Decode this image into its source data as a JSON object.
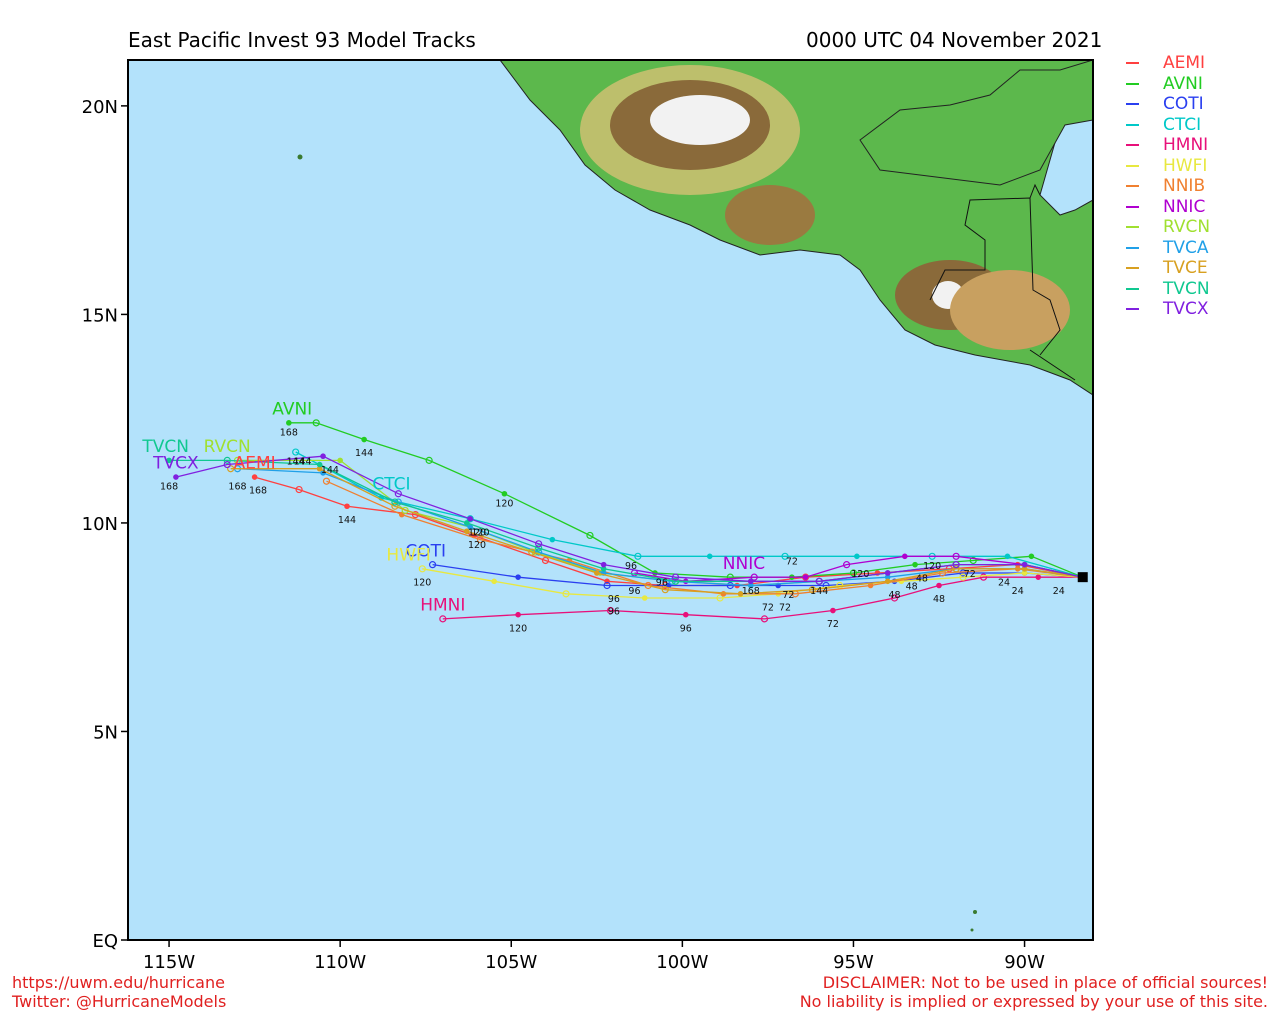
{
  "header": {
    "title": "East Pacific Invest 93 Model Tracks",
    "timestamp": "0000 UTC 04 November 2021"
  },
  "axes": {
    "lon_ticks": [
      {
        "lon": -115,
        "label": "115W"
      },
      {
        "lon": -110,
        "label": "110W"
      },
      {
        "lon": -105,
        "label": "105W"
      },
      {
        "lon": -100,
        "label": "100W"
      },
      {
        "lon": -95,
        "label": "95W"
      },
      {
        "lon": -90,
        "label": "90W"
      }
    ],
    "lat_ticks": [
      {
        "lat": 0,
        "label": "EQ"
      },
      {
        "lat": 5,
        "label": "5N"
      },
      {
        "lat": 10,
        "label": "10N"
      },
      {
        "lat": 15,
        "label": "15N"
      },
      {
        "lat": 20,
        "label": "20N"
      }
    ],
    "lon_range": [
      -116.2,
      -88.0
    ],
    "lat_range": [
      0,
      21.1
    ]
  },
  "chart_data": {
    "type": "scatter",
    "current_position": {
      "lon": -88.3,
      "lat": 8.7
    },
    "series": [
      {
        "name": "AEMI",
        "color": "#ff4040",
        "points": [
          [
            -88.3,
            8.7
          ],
          [
            -90.2,
            9.0
          ],
          [
            -92.2,
            8.9
          ],
          [
            -94.3,
            8.8
          ],
          [
            -96.4,
            8.7
          ],
          [
            -98.4,
            8.5
          ],
          [
            -100.5,
            8.5
          ],
          [
            -102.2,
            8.6
          ],
          [
            -104.0,
            9.1
          ],
          [
            -106.1,
            9.7
          ],
          [
            -107.8,
            10.2
          ],
          [
            -109.8,
            10.4
          ],
          [
            -111.2,
            10.8
          ],
          [
            -112.5,
            11.1
          ]
        ],
        "label_at": [
          -112.5,
          11.3
        ],
        "hour_labels": [
          {
            "text": "144",
            "lon": -109.8,
            "lat": 10.0
          },
          {
            "text": "168",
            "lon": -112.4,
            "lat": 10.7
          }
        ]
      },
      {
        "name": "AVNI",
        "color": "#22cc22",
        "points": [
          [
            -88.3,
            8.7
          ],
          [
            -89.8,
            9.2
          ],
          [
            -91.5,
            9.1
          ],
          [
            -93.2,
            9.0
          ],
          [
            -95.0,
            8.8
          ],
          [
            -96.8,
            8.7
          ],
          [
            -98.6,
            8.7
          ],
          [
            -100.8,
            8.8
          ],
          [
            -102.7,
            9.7
          ],
          [
            -105.2,
            10.7
          ],
          [
            -107.4,
            11.5
          ],
          [
            -109.3,
            12.0
          ],
          [
            -110.7,
            12.4
          ],
          [
            -111.5,
            12.4
          ]
        ],
        "label_at": [
          -111.4,
          12.6
        ],
        "hour_labels": [
          {
            "text": "120",
            "lon": -105.2,
            "lat": 10.4
          },
          {
            "text": "144",
            "lon": -109.3,
            "lat": 11.6
          },
          {
            "text": "168",
            "lon": -111.5,
            "lat": 12.1
          }
        ]
      },
      {
        "name": "COTI",
        "color": "#2a3ff0",
        "points": [
          [
            -88.3,
            8.7
          ],
          [
            -90.0,
            8.8
          ],
          [
            -91.8,
            8.8
          ],
          [
            -93.8,
            8.6
          ],
          [
            -95.8,
            8.5
          ],
          [
            -97.2,
            8.5
          ],
          [
            -98.6,
            8.5
          ],
          [
            -100.4,
            8.5
          ],
          [
            -102.2,
            8.5
          ],
          [
            -104.8,
            8.7
          ],
          [
            -107.3,
            9.0
          ]
        ],
        "label_at": [
          -107.5,
          9.2
        ],
        "hour_labels": [
          {
            "text": "96",
            "lon": -102.0,
            "lat": 8.1
          }
        ]
      },
      {
        "name": "CTCI",
        "color": "#00c8c8",
        "points": [
          [
            -88.3,
            8.7
          ],
          [
            -90.5,
            9.2
          ],
          [
            -92.7,
            9.2
          ],
          [
            -94.9,
            9.2
          ],
          [
            -97.0,
            9.2
          ],
          [
            -99.2,
            9.2
          ],
          [
            -101.3,
            9.2
          ],
          [
            -103.8,
            9.6
          ],
          [
            -106.2,
            10.1
          ],
          [
            -108.8,
            10.6
          ],
          [
            -111.3,
            11.7
          ]
        ],
        "label_at": [
          -108.5,
          10.8
        ],
        "hour_labels": [
          {
            "text": "120",
            "lon": -106.0,
            "lat": 9.7
          }
        ]
      },
      {
        "name": "HMNI",
        "color": "#e8107a",
        "points": [
          [
            -88.3,
            8.7
          ],
          [
            -89.6,
            8.7
          ],
          [
            -91.2,
            8.7
          ],
          [
            -92.5,
            8.5
          ],
          [
            -93.8,
            8.2
          ],
          [
            -95.6,
            7.9
          ],
          [
            -97.6,
            7.7
          ],
          [
            -99.9,
            7.8
          ],
          [
            -102.1,
            7.9
          ],
          [
            -104.8,
            7.8
          ],
          [
            -107.0,
            7.7
          ]
        ],
        "label_at": [
          -107.0,
          7.9
        ],
        "hour_labels": [
          {
            "text": "48",
            "lon": -92.5,
            "lat": 8.1
          },
          {
            "text": "72",
            "lon": -95.6,
            "lat": 7.5
          },
          {
            "text": "96",
            "lon": -99.9,
            "lat": 7.4
          },
          {
            "text": "120",
            "lon": -104.8,
            "lat": 7.4
          }
        ]
      },
      {
        "name": "HWFI",
        "color": "#e8e840",
        "points": [
          [
            -88.3,
            8.7
          ],
          [
            -90.0,
            8.8
          ],
          [
            -91.8,
            8.7
          ],
          [
            -93.6,
            8.6
          ],
          [
            -95.4,
            8.5
          ],
          [
            -97.2,
            8.3
          ],
          [
            -98.9,
            8.2
          ],
          [
            -101.1,
            8.2
          ],
          [
            -103.4,
            8.3
          ],
          [
            -105.5,
            8.6
          ],
          [
            -107.6,
            8.9
          ]
        ],
        "label_at": [
          -108.0,
          9.1
        ],
        "hour_labels": [
          {
            "text": "96",
            "lon": -102.0,
            "lat": 7.8
          },
          {
            "text": "120",
            "lon": -107.6,
            "lat": 8.5
          }
        ]
      },
      {
        "name": "NNIB",
        "color": "#f08030",
        "points": [
          [
            -88.3,
            8.7
          ],
          [
            -90.2,
            8.9
          ],
          [
            -92.4,
            8.8
          ],
          [
            -94.5,
            8.5
          ],
          [
            -96.7,
            8.3
          ],
          [
            -98.8,
            8.3
          ],
          [
            -101.0,
            8.5
          ],
          [
            -103.3,
            9.1
          ],
          [
            -105.9,
            9.6
          ],
          [
            -108.2,
            10.2
          ],
          [
            -110.4,
            11.0
          ]
        ],
        "label_at": null,
        "hour_labels": [
          {
            "text": "72",
            "lon": -97.0,
            "lat": 7.9
          },
          {
            "text": "120",
            "lon": -106.0,
            "lat": 9.4
          }
        ]
      },
      {
        "name": "NNIC",
        "color": "#b000d0",
        "points": [
          [
            -88.3,
            8.7
          ],
          [
            -90.0,
            9.0
          ],
          [
            -92.0,
            9.2
          ],
          [
            -93.5,
            9.2
          ],
          [
            -95.2,
            9.0
          ],
          [
            -96.4,
            8.7
          ],
          [
            -97.9,
            8.7
          ],
          [
            -99.9,
            8.6
          ],
          [
            -101.4,
            8.8
          ]
        ],
        "label_at": [
          -98.2,
          8.9
        ],
        "hour_labels": [
          {
            "text": "72",
            "lon": -96.8,
            "lat": 9.0
          },
          {
            "text": "168",
            "lon": -98.0,
            "lat": 8.3
          }
        ]
      },
      {
        "name": "RVCN",
        "color": "#a0e030",
        "points": [
          [
            -88.3,
            8.7
          ],
          [
            -90.0,
            9.0
          ],
          [
            -92.0,
            9.0
          ],
          [
            -94.0,
            8.8
          ],
          [
            -96.0,
            8.6
          ],
          [
            -98.0,
            8.5
          ],
          [
            -100.2,
            8.6
          ],
          [
            -102.4,
            8.8
          ],
          [
            -104.3,
            9.3
          ],
          [
            -106.2,
            9.9
          ],
          [
            -108.1,
            10.3
          ],
          [
            -110.0,
            11.5
          ],
          [
            -113.0,
            11.5
          ]
        ],
        "label_at": [
          -113.3,
          11.7
        ],
        "hour_labels": [
          {
            "text": "144",
            "lon": -110.3,
            "lat": 11.2
          }
        ]
      },
      {
        "name": "TVCA",
        "color": "#20a0e8",
        "points": [
          [
            -88.3,
            8.7
          ],
          [
            -90.0,
            8.9
          ],
          [
            -92.0,
            8.9
          ],
          [
            -94.0,
            8.7
          ],
          [
            -96.0,
            8.6
          ],
          [
            -98.0,
            8.5
          ],
          [
            -100.3,
            8.6
          ],
          [
            -102.3,
            8.8
          ],
          [
            -104.2,
            9.3
          ],
          [
            -106.2,
            9.9
          ],
          [
            -108.3,
            10.5
          ],
          [
            -110.5,
            11.2
          ],
          [
            -113.0,
            11.3
          ]
        ],
        "label_at": null,
        "hour_labels": []
      },
      {
        "name": "TVCE",
        "color": "#d8a020",
        "points": [
          [
            -88.3,
            8.7
          ],
          [
            -90.0,
            8.9
          ],
          [
            -92.0,
            8.9
          ],
          [
            -94.0,
            8.6
          ],
          [
            -96.2,
            8.4
          ],
          [
            -98.3,
            8.3
          ],
          [
            -100.5,
            8.4
          ],
          [
            -102.5,
            8.8
          ],
          [
            -104.4,
            9.3
          ],
          [
            -106.3,
            9.8
          ],
          [
            -108.4,
            10.4
          ],
          [
            -110.6,
            11.3
          ],
          [
            -113.2,
            11.3
          ]
        ],
        "label_at": null,
        "hour_labels": []
      },
      {
        "name": "TVCN",
        "color": "#10c890",
        "points": [
          [
            -88.3,
            8.7
          ],
          [
            -90.0,
            9.0
          ],
          [
            -92.0,
            9.0
          ],
          [
            -94.0,
            8.8
          ],
          [
            -96.0,
            8.6
          ],
          [
            -98.0,
            8.6
          ],
          [
            -100.2,
            8.6
          ],
          [
            -102.3,
            8.9
          ],
          [
            -104.2,
            9.4
          ],
          [
            -106.3,
            10.0
          ],
          [
            -108.4,
            10.5
          ],
          [
            -110.6,
            11.4
          ],
          [
            -113.3,
            11.5
          ],
          [
            -115.0,
            11.5
          ]
        ],
        "label_at": [
          -115.1,
          11.7
        ],
        "hour_labels": [
          {
            "text": "144",
            "lon": -111.1,
            "lat": 11.4
          }
        ]
      },
      {
        "name": "TVCX",
        "color": "#8020e0",
        "points": [
          [
            -88.3,
            8.7
          ],
          [
            -90.0,
            9.0
          ],
          [
            -92.0,
            9.0
          ],
          [
            -94.0,
            8.8
          ],
          [
            -96.0,
            8.6
          ],
          [
            -98.0,
            8.6
          ],
          [
            -100.2,
            8.7
          ],
          [
            -102.3,
            9.0
          ],
          [
            -104.2,
            9.5
          ],
          [
            -106.2,
            10.1
          ],
          [
            -108.3,
            10.7
          ],
          [
            -110.5,
            11.6
          ],
          [
            -113.3,
            11.4
          ],
          [
            -114.8,
            11.1
          ]
        ],
        "label_at": [
          -114.8,
          11.3
        ],
        "hour_labels": [
          {
            "text": "168",
            "lon": -115.0,
            "lat": 10.8
          },
          {
            "text": "168",
            "lon": -113.0,
            "lat": 10.8
          }
        ]
      }
    ],
    "extra_hour_labels": [
      {
        "text": "24",
        "lon": -90.2,
        "lat": 8.3
      },
      {
        "text": "24",
        "lon": -89.0,
        "lat": 8.3
      },
      {
        "text": "24",
        "lon": -90.6,
        "lat": 8.5
      },
      {
        "text": "48",
        "lon": -93.8,
        "lat": 8.2
      },
      {
        "text": "48",
        "lon": -93.3,
        "lat": 8.4
      },
      {
        "text": "48",
        "lon": -93.0,
        "lat": 8.6
      },
      {
        "text": "72",
        "lon": -91.6,
        "lat": 8.7
      },
      {
        "text": "72",
        "lon": -96.9,
        "lat": 8.2
      },
      {
        "text": "72",
        "lon": -97.5,
        "lat": 7.9
      },
      {
        "text": "96",
        "lon": -101.4,
        "lat": 8.3
      },
      {
        "text": "96",
        "lon": -101.5,
        "lat": 8.9
      },
      {
        "text": "96",
        "lon": -100.6,
        "lat": 8.5
      },
      {
        "text": "120",
        "lon": -94.8,
        "lat": 8.7
      },
      {
        "text": "120",
        "lon": -92.7,
        "lat": 8.9
      },
      {
        "text": "144",
        "lon": -96.0,
        "lat": 8.3
      },
      {
        "text": "120",
        "lon": -105.9,
        "lat": 9.7
      },
      {
        "text": "144",
        "lon": -111.3,
        "lat": 11.4
      }
    ]
  },
  "legend": [
    {
      "label": "AEMI",
      "color": "#ff4040"
    },
    {
      "label": "AVNI",
      "color": "#22cc22"
    },
    {
      "label": "COTI",
      "color": "#2a3ff0"
    },
    {
      "label": "CTCI",
      "color": "#00c8c8"
    },
    {
      "label": "HMNI",
      "color": "#e8107a"
    },
    {
      "label": "HWFI",
      "color": "#e8e840"
    },
    {
      "label": "NNIB",
      "color": "#f08030"
    },
    {
      "label": "NNIC",
      "color": "#b000d0"
    },
    {
      "label": "RVCN",
      "color": "#a0e030"
    },
    {
      "label": "TVCA",
      "color": "#20a0e8"
    },
    {
      "label": "TVCE",
      "color": "#d8a020"
    },
    {
      "label": "TVCN",
      "color": "#10c890"
    },
    {
      "label": "TVCX",
      "color": "#8020e0"
    }
  ],
  "footer": {
    "url": "https://uwm.edu/hurricane",
    "twitter": "Twitter: @HurricaneModels",
    "disclaimer_1": "DISCLAIMER: Not to be used in place of official sources!",
    "disclaimer_2": "No liability is implied or expressed by your use of this site."
  },
  "colors": {
    "ocean": "#b3e2fb",
    "land_low": "#5cb84c",
    "land_mid": "#c8c870",
    "land_high": "#8a6a3a",
    "snow": "#f2f2f2"
  }
}
